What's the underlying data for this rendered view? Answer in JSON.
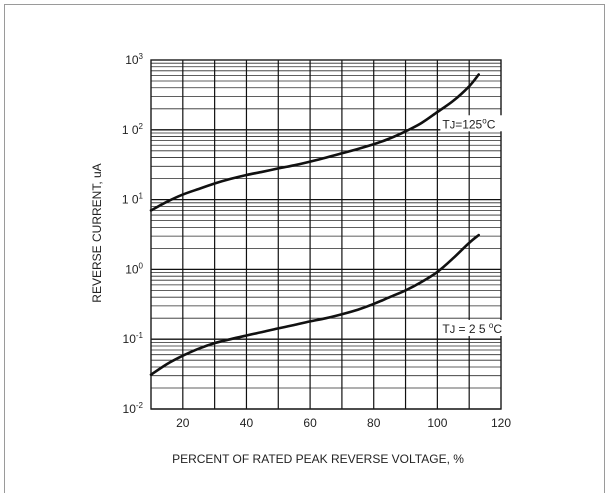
{
  "chart_data": {
    "type": "line",
    "title": "",
    "xlabel": "PERCENT OF RATED PEAK REVERSE VOLTAGE, %",
    "ylabel": "REVERSE CURRENT, uA",
    "x_scale": "linear",
    "y_scale": "log",
    "xlim": [
      10,
      120
    ],
    "ylim": [
      0.01,
      1000
    ],
    "grid": true,
    "x_ticks": [
      "20",
      "40",
      "60",
      "80",
      "100",
      "120"
    ],
    "y_ticks": [
      {
        "base": "10",
        "exp": "-2"
      },
      {
        "base": "10",
        "exp": "-1"
      },
      {
        "base": "10",
        "exp": "0"
      },
      {
        "base": "1 0",
        "exp": "1"
      },
      {
        "base": "1 0",
        "exp": "2"
      },
      {
        "base": "10",
        "exp": "3"
      }
    ],
    "series": [
      {
        "name": "TJ=125°C",
        "label_parts": {
          "pre": "T",
          "sub": "J",
          "val": "=125",
          "deg": "o",
          "unit": "C"
        },
        "x": [
          10,
          15,
          20,
          25,
          30,
          35,
          40,
          45,
          50,
          55,
          60,
          65,
          70,
          75,
          80,
          85,
          90,
          95,
          100,
          105,
          110,
          113
        ],
        "values": [
          7,
          9.3,
          11.8,
          14.2,
          17,
          19.8,
          22.5,
          25,
          28,
          31,
          35,
          40,
          46,
          53,
          62,
          75,
          95,
          125,
          180,
          260,
          420,
          620
        ]
      },
      {
        "name": "TJ = 2 5 °C",
        "label_parts": {
          "pre": "T",
          "sub": "J",
          "val": " = 2 5 ",
          "deg": "o",
          "unit": "C"
        },
        "x": [
          10,
          15,
          20,
          25,
          30,
          35,
          40,
          45,
          50,
          55,
          60,
          65,
          70,
          75,
          80,
          85,
          90,
          95,
          100,
          105,
          110,
          113
        ],
        "values": [
          0.031,
          0.044,
          0.058,
          0.073,
          0.088,
          0.1,
          0.113,
          0.127,
          0.143,
          0.16,
          0.18,
          0.2,
          0.228,
          0.265,
          0.32,
          0.4,
          0.5,
          0.66,
          0.92,
          1.45,
          2.4,
          3.1
        ]
      }
    ]
  }
}
